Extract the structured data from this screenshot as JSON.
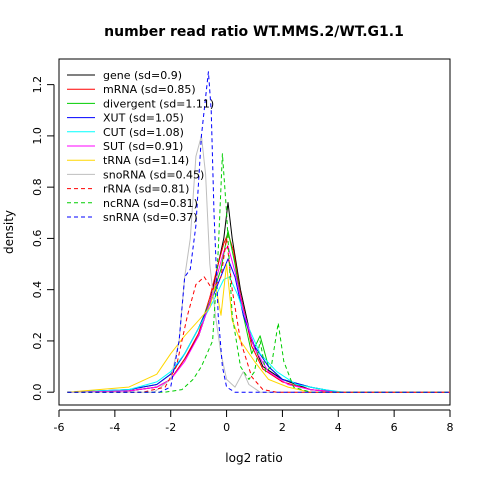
{
  "chart_data": {
    "type": "line",
    "title": "number read ratio WT.MMS.2/WT.G1.1",
    "xlabel": "log2 ratio",
    "ylabel": "density",
    "xlim": [
      -6.0,
      8.0
    ],
    "ylim": [
      -0.05,
      1.3
    ],
    "xticks": [
      -6,
      -4,
      -2,
      0,
      2,
      4,
      6,
      8
    ],
    "yticks": [
      0.0,
      0.2,
      0.4,
      0.6,
      0.8,
      1.0,
      1.2
    ],
    "legend_position": "top-left",
    "series": [
      {
        "name": "gene (sd=0.9)",
        "color": "#000000",
        "dash": "solid",
        "points": [
          [
            -5.7,
            0
          ],
          [
            -3.5,
            0.005
          ],
          [
            -2.5,
            0.02
          ],
          [
            -2,
            0.05
          ],
          [
            -1.5,
            0.13
          ],
          [
            -1,
            0.22
          ],
          [
            -0.6,
            0.35
          ],
          [
            -0.3,
            0.5
          ],
          [
            -0.1,
            0.6
          ],
          [
            0.05,
            0.74
          ],
          [
            0.2,
            0.6
          ],
          [
            0.5,
            0.4
          ],
          [
            0.9,
            0.2
          ],
          [
            1.3,
            0.1
          ],
          [
            2,
            0.05
          ],
          [
            3,
            0.01
          ],
          [
            4,
            0
          ],
          [
            8,
            0
          ]
        ]
      },
      {
        "name": "mRNA (sd=0.85)",
        "color": "#ff0000",
        "dash": "solid",
        "points": [
          [
            -5.7,
            0
          ],
          [
            -3.5,
            0.005
          ],
          [
            -2.5,
            0.02
          ],
          [
            -2,
            0.05
          ],
          [
            -1.5,
            0.13
          ],
          [
            -1,
            0.23
          ],
          [
            -0.6,
            0.37
          ],
          [
            -0.3,
            0.5
          ],
          [
            -0.1,
            0.58
          ],
          [
            0.05,
            0.62
          ],
          [
            0.25,
            0.55
          ],
          [
            0.5,
            0.38
          ],
          [
            0.9,
            0.18
          ],
          [
            1.3,
            0.09
          ],
          [
            2,
            0.04
          ],
          [
            3,
            0.01
          ],
          [
            4,
            0
          ],
          [
            8,
            0
          ]
        ]
      },
      {
        "name": "divergent (sd=1.11)",
        "color": "#00cd00",
        "dash": "solid",
        "points": [
          [
            -5.7,
            0
          ],
          [
            -3.5,
            0.01
          ],
          [
            -2.5,
            0.03
          ],
          [
            -2,
            0.07
          ],
          [
            -1.5,
            0.15
          ],
          [
            -1,
            0.25
          ],
          [
            -0.5,
            0.38
          ],
          [
            -0.2,
            0.48
          ],
          [
            0.05,
            0.63
          ],
          [
            0.3,
            0.5
          ],
          [
            0.6,
            0.3
          ],
          [
            0.9,
            0.15
          ],
          [
            1.2,
            0.22
          ],
          [
            1.5,
            0.1
          ],
          [
            2,
            0.05
          ],
          [
            3,
            0.02
          ],
          [
            4,
            0
          ],
          [
            8,
            0
          ]
        ]
      },
      {
        "name": "XUT (sd=1.05)",
        "color": "#0000ff",
        "dash": "solid",
        "points": [
          [
            -5.7,
            0
          ],
          [
            -3.5,
            0.01
          ],
          [
            -2.5,
            0.03
          ],
          [
            -2,
            0.07
          ],
          [
            -1.5,
            0.15
          ],
          [
            -1,
            0.25
          ],
          [
            -0.5,
            0.37
          ],
          [
            -0.1,
            0.48
          ],
          [
            0.05,
            0.52
          ],
          [
            0.3,
            0.45
          ],
          [
            0.6,
            0.3
          ],
          [
            1,
            0.18
          ],
          [
            1.5,
            0.1
          ],
          [
            2,
            0.05
          ],
          [
            3,
            0.02
          ],
          [
            4,
            0
          ],
          [
            8,
            0
          ]
        ]
      },
      {
        "name": "CUT (sd=1.08)",
        "color": "#00ffff",
        "dash": "solid",
        "points": [
          [
            -5.7,
            0
          ],
          [
            -3.5,
            0.01
          ],
          [
            -2.5,
            0.04
          ],
          [
            -2,
            0.08
          ],
          [
            -1.5,
            0.15
          ],
          [
            -1,
            0.25
          ],
          [
            -0.5,
            0.35
          ],
          [
            -0.1,
            0.44
          ],
          [
            0.1,
            0.45
          ],
          [
            0.4,
            0.38
          ],
          [
            0.8,
            0.25
          ],
          [
            1.2,
            0.15
          ],
          [
            1.8,
            0.08
          ],
          [
            2.5,
            0.03
          ],
          [
            3.5,
            0.01
          ],
          [
            4.2,
            0
          ],
          [
            8,
            0
          ]
        ]
      },
      {
        "name": "SUT (sd=0.91)",
        "color": "#ff00ff",
        "dash": "solid",
        "points": [
          [
            -5.7,
            0
          ],
          [
            -3.5,
            0.005
          ],
          [
            -2.5,
            0.02
          ],
          [
            -2,
            0.05
          ],
          [
            -1.5,
            0.12
          ],
          [
            -1,
            0.22
          ],
          [
            -0.6,
            0.35
          ],
          [
            -0.3,
            0.47
          ],
          [
            -0.1,
            0.55
          ],
          [
            0.05,
            0.57
          ],
          [
            0.3,
            0.47
          ],
          [
            0.6,
            0.32
          ],
          [
            1,
            0.17
          ],
          [
            1.5,
            0.08
          ],
          [
            2.2,
            0.03
          ],
          [
            3,
            0.01
          ],
          [
            4,
            0
          ],
          [
            8,
            0
          ]
        ]
      },
      {
        "name": "tRNA (sd=1.14)",
        "color": "#ffd700",
        "dash": "solid",
        "points": [
          [
            -5.7,
            0
          ],
          [
            -3.5,
            0.02
          ],
          [
            -2.5,
            0.07
          ],
          [
            -2,
            0.15
          ],
          [
            -1.5,
            0.22
          ],
          [
            -1,
            0.28
          ],
          [
            -0.6,
            0.33
          ],
          [
            -0.4,
            0.42
          ],
          [
            -0.2,
            0.3
          ],
          [
            0,
            0.5
          ],
          [
            0.2,
            0.28
          ],
          [
            0.5,
            0.2
          ],
          [
            1,
            0.12
          ],
          [
            1.5,
            0.05
          ],
          [
            2.2,
            0.02
          ],
          [
            3,
            0
          ],
          [
            8,
            0
          ]
        ]
      },
      {
        "name": "snoRNA (sd=0.45)",
        "color": "#bebebe",
        "dash": "solid",
        "points": [
          [
            -5.7,
            0
          ],
          [
            -2.6,
            0
          ],
          [
            -2,
            0.05
          ],
          [
            -1.7,
            0.2
          ],
          [
            -1.5,
            0.45
          ],
          [
            -1.3,
            0.6
          ],
          [
            -1.1,
            0.92
          ],
          [
            -0.9,
            1.0
          ],
          [
            -0.75,
            0.85
          ],
          [
            -0.6,
            0.5
          ],
          [
            -0.4,
            0.3
          ],
          [
            -0.2,
            0.15
          ],
          [
            0,
            0.05
          ],
          [
            0.3,
            0.02
          ],
          [
            0.6,
            0.08
          ],
          [
            0.8,
            0.03
          ],
          [
            1.2,
            0
          ],
          [
            8,
            0
          ]
        ]
      },
      {
        "name": "rRNA (sd=0.81)",
        "color": "#ff0000",
        "dash": "dashed",
        "points": [
          [
            -5.7,
            0
          ],
          [
            -3,
            0
          ],
          [
            -2.2,
            0.02
          ],
          [
            -1.8,
            0.1
          ],
          [
            -1.4,
            0.3
          ],
          [
            -1.1,
            0.42
          ],
          [
            -0.8,
            0.45
          ],
          [
            -0.5,
            0.4
          ],
          [
            -0.2,
            0.45
          ],
          [
            0,
            0.6
          ],
          [
            0.2,
            0.4
          ],
          [
            0.5,
            0.2
          ],
          [
            0.9,
            0.06
          ],
          [
            1.3,
            0.01
          ],
          [
            1.8,
            0
          ],
          [
            8,
            0
          ]
        ]
      },
      {
        "name": "ncRNA (sd=0.81)",
        "color": "#00cd00",
        "dash": "dashed",
        "points": [
          [
            -5.7,
            0
          ],
          [
            -2.2,
            0
          ],
          [
            -1.6,
            0.01
          ],
          [
            -1.2,
            0.05
          ],
          [
            -0.9,
            0.1
          ],
          [
            -0.5,
            0.2
          ],
          [
            -0.3,
            0.55
          ],
          [
            -0.15,
            0.93
          ],
          [
            0,
            0.7
          ],
          [
            0.2,
            0.3
          ],
          [
            0.5,
            0.1
          ],
          [
            0.8,
            0.05
          ],
          [
            1,
            0.08
          ],
          [
            1.2,
            0.2
          ],
          [
            1.4,
            0.08
          ],
          [
            1.6,
            0.1
          ],
          [
            1.85,
            0.27
          ],
          [
            2.05,
            0.12
          ],
          [
            2.4,
            0.02
          ],
          [
            3,
            0
          ],
          [
            8,
            0
          ]
        ]
      },
      {
        "name": "snRNA (sd=0.37)",
        "color": "#0000ff",
        "dash": "dashed",
        "points": [
          [
            -5.7,
            0
          ],
          [
            -2.4,
            0
          ],
          [
            -2,
            0.02
          ],
          [
            -1.7,
            0.2
          ],
          [
            -1.5,
            0.45
          ],
          [
            -1.3,
            0.48
          ],
          [
            -1.1,
            0.65
          ],
          [
            -0.9,
            1.0
          ],
          [
            -0.75,
            1.15
          ],
          [
            -0.65,
            1.25
          ],
          [
            -0.55,
            1.1
          ],
          [
            -0.45,
            0.7
          ],
          [
            -0.3,
            0.3
          ],
          [
            -0.15,
            0.1
          ],
          [
            0,
            0.02
          ],
          [
            0.3,
            0
          ],
          [
            8,
            0
          ]
        ]
      }
    ]
  }
}
